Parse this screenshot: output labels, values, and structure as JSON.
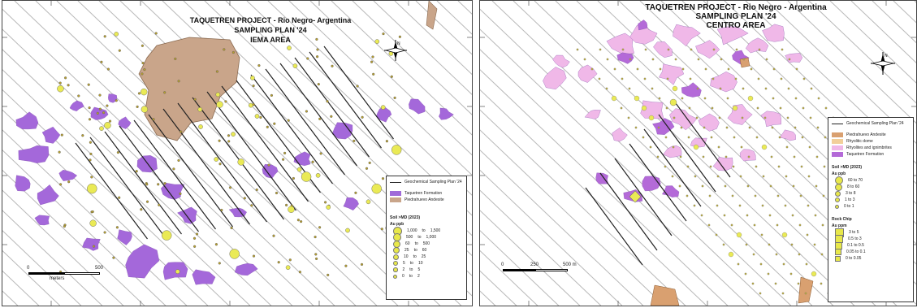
{
  "left_map": {
    "title_line1": "TAQUETREN PROJECT - Rio Negro- Argentina",
    "title_line2": "SAMPLING PLAN '24",
    "title_line3": "IEMA AREA",
    "north_label": "N",
    "legend": {
      "lines_label": "Geochemical Sampling Plan '24",
      "units": [
        {
          "label": "Taquetren Formation",
          "color": "#a06ad8"
        },
        {
          "label": "Piedrahuevo Andesite",
          "color": "#c9a58a"
        }
      ],
      "soil_header": "Soil >MD (2023)",
      "soil_unit": "Au ppb",
      "soil_classes": [
        {
          "from": "1,000",
          "to": "1,500",
          "size": 7
        },
        {
          "from": "500",
          "to": "1,000",
          "size": 6
        },
        {
          "from": "60",
          "to": "500",
          "size": 5
        },
        {
          "from": "25",
          "to": "60",
          "size": 4
        },
        {
          "from": "10",
          "to": "25",
          "size": 3
        },
        {
          "from": "5",
          "to": "10",
          "size": 2
        },
        {
          "from": "2",
          "to": "5",
          "size": 1.5
        },
        {
          "from": "0",
          "to": "2",
          "size": 1
        }
      ]
    },
    "scale_labels": [
      "0",
      "500"
    ],
    "scale_unit": "meters"
  },
  "right_map": {
    "title_line1": "TAQUETREN PROJECT - Rio Negro - Argentina",
    "title_line2": "SAMPLING PLAN '24",
    "title_line3": "CENTRO AREA",
    "north_label": "N",
    "legend": {
      "lines_label": "Geochemical Sampling Plan '24",
      "units": [
        {
          "label": "Piedrahuevo Andesite",
          "color": "#d9a070"
        },
        {
          "label": "Rhyolitic dome",
          "color": "#f2cf9a"
        },
        {
          "label": "Rhyolites and ignimbrites",
          "color": "#f0b8e8"
        },
        {
          "label": "Taquetren Formation",
          "color": "#b46ad8"
        }
      ],
      "soil_header": "Soil >MD (2023)",
      "soil_unit": "Au ppb",
      "soil_classes": [
        {
          "label": "60 to 70",
          "size": 6
        },
        {
          "label": "8 to 60",
          "size": 5
        },
        {
          "label": "3 to 8",
          "size": 3
        },
        {
          "label": "1 to 3",
          "size": 2
        },
        {
          "label": "0 to 1",
          "size": 1
        }
      ],
      "rock_header": "Rock Chip",
      "rock_unit": "Au ppm",
      "rock_classes": [
        {
          "label": "3 to 5",
          "size": 7
        },
        {
          "label": "0.5 to 3",
          "size": 6
        },
        {
          "label": "0.1 to 0.5",
          "size": 5
        },
        {
          "label": "0.05 to 0.1",
          "size": 4
        },
        {
          "label": "0 to 0.05",
          "size": 3
        }
      ]
    },
    "scale_labels": [
      "0",
      "250",
      "500 m"
    ]
  }
}
